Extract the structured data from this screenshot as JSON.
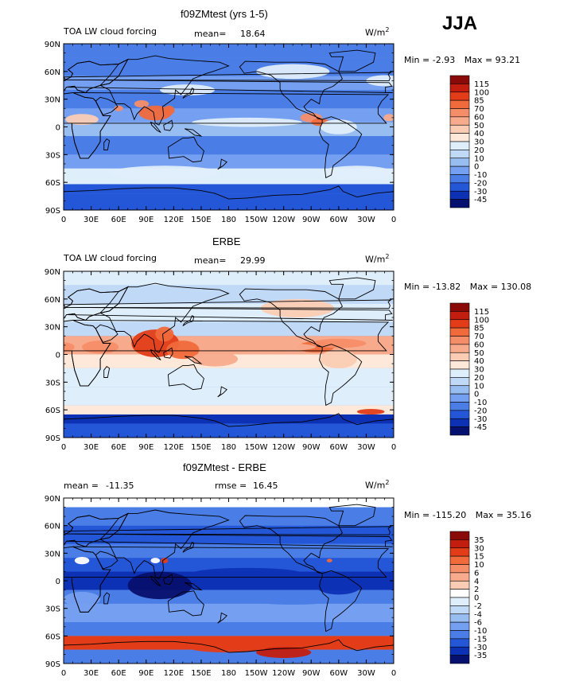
{
  "season": "JJA",
  "units_label": "W/m",
  "units_superscript": "2",
  "panels": [
    {
      "title": "f09ZMtest (yrs 1-5)",
      "left_label": "TOA LW cloud forcing",
      "stat1_label": "mean=",
      "stat1_value": "18.64",
      "stat2_label": "",
      "stat2_value": "",
      "min_label": "Min =",
      "min_value": "-2.93",
      "max_label": "Max =",
      "max_value": "93.21",
      "colorbar_labels": [
        "115",
        "100",
        "85",
        "70",
        "60",
        "50",
        "40",
        "30",
        "20",
        "10",
        "0",
        "-10",
        "-20",
        "-30",
        "-45"
      ],
      "colorbar_colors": [
        "#8a0a0a",
        "#c31d10",
        "#e23d18",
        "#f06a3c",
        "#f58d68",
        "#f8ab8c",
        "#fbccb4",
        "#fde8da",
        "#dfeefb",
        "#c0d9f6",
        "#98bdf1",
        "#759ff0",
        "#4a7ee6",
        "#2456d8",
        "#0d31b5",
        "#06106e"
      ]
    },
    {
      "title": "ERBE",
      "left_label": "TOA LW cloud forcing",
      "stat1_label": "mean=",
      "stat1_value": "29.99",
      "stat2_label": "",
      "stat2_value": "",
      "min_label": "Min =",
      "min_value": "-13.82",
      "max_label": "Max =",
      "max_value": "130.08",
      "colorbar_labels": [
        "115",
        "100",
        "85",
        "70",
        "60",
        "50",
        "40",
        "30",
        "20",
        "10",
        "0",
        "-10",
        "-20",
        "-30",
        "-45"
      ],
      "colorbar_colors": [
        "#8a0a0a",
        "#c31d10",
        "#e23d18",
        "#f06a3c",
        "#f58d68",
        "#f8ab8c",
        "#fbccb4",
        "#fde8da",
        "#dfeefb",
        "#c0d9f6",
        "#98bdf1",
        "#759ff0",
        "#4a7ee6",
        "#2456d8",
        "#0d31b5",
        "#06106e"
      ]
    },
    {
      "title": "f09ZMtest - ERBE",
      "left_label": "",
      "stat1_label": "mean =",
      "stat1_value": "-11.35",
      "stat2_label": "rmse =",
      "stat2_value": "16.45",
      "min_label": "Min =",
      "min_value": "-115.20",
      "max_label": "Max =",
      "max_value": "35.16",
      "colorbar_labels": [
        "35",
        "30",
        "15",
        "10",
        "6",
        "4",
        "2",
        "0",
        "-2",
        "-4",
        "-6",
        "-10",
        "-15",
        "-30",
        "-35"
      ],
      "colorbar_colors": [
        "#8a0a0a",
        "#c31d10",
        "#e23d18",
        "#f06a3c",
        "#f58d68",
        "#f8ab8c",
        "#fbccb4",
        "#ffffff",
        "#dfeefb",
        "#c0d9f6",
        "#98bdf1",
        "#759ff0",
        "#4a7ee6",
        "#2456d8",
        "#0d31b5",
        "#06106e"
      ]
    }
  ],
  "chart_data": [
    {
      "type": "heatmap",
      "title": "f09ZMtest (yrs 1-5)",
      "variable": "TOA LW cloud forcing",
      "units": "W/m2",
      "mean": 18.64,
      "min": -2.93,
      "max": 93.21,
      "x_ticks": [
        "0",
        "30E",
        "60E",
        "90E",
        "120E",
        "150E",
        "180",
        "150W",
        "120W",
        "90W",
        "60W",
        "30W",
        "0"
      ],
      "y_ticks": [
        "90N",
        "60N",
        "30N",
        "0",
        "30S",
        "60S",
        "90S"
      ],
      "xlim": [
        0,
        360
      ],
      "ylim": [
        -90,
        90
      ],
      "levels": [
        -45,
        -30,
        -20,
        -10,
        0,
        10,
        20,
        30,
        40,
        50,
        60,
        70,
        85,
        100,
        115
      ]
    },
    {
      "type": "heatmap",
      "title": "ERBE",
      "variable": "TOA LW cloud forcing",
      "units": "W/m2",
      "mean": 29.99,
      "min": -13.82,
      "max": 130.08,
      "x_ticks": [
        "0",
        "30E",
        "60E",
        "90E",
        "120E",
        "150E",
        "180",
        "150W",
        "120W",
        "90W",
        "60W",
        "30W",
        "0"
      ],
      "y_ticks": [
        "90N",
        "60N",
        "30N",
        "0",
        "30S",
        "60S",
        "90S"
      ],
      "xlim": [
        0,
        360
      ],
      "ylim": [
        -90,
        90
      ],
      "levels": [
        -45,
        -30,
        -20,
        -10,
        0,
        10,
        20,
        30,
        40,
        50,
        60,
        70,
        85,
        100,
        115
      ]
    },
    {
      "type": "heatmap",
      "title": "f09ZMtest - ERBE",
      "units": "W/m2",
      "mean": -11.35,
      "rmse": 16.45,
      "min": -115.2,
      "max": 35.16,
      "x_ticks": [
        "0",
        "30E",
        "60E",
        "90E",
        "120E",
        "150E",
        "180",
        "150W",
        "120W",
        "90W",
        "60W",
        "30W",
        "0"
      ],
      "y_ticks": [
        "90N",
        "60N",
        "30N",
        "0",
        "30S",
        "60S",
        "90S"
      ],
      "xlim": [
        0,
        360
      ],
      "ylim": [
        -90,
        90
      ],
      "levels": [
        -35,
        -30,
        -15,
        -10,
        -6,
        -4,
        -2,
        0,
        2,
        4,
        6,
        10,
        15,
        30,
        35
      ]
    }
  ]
}
